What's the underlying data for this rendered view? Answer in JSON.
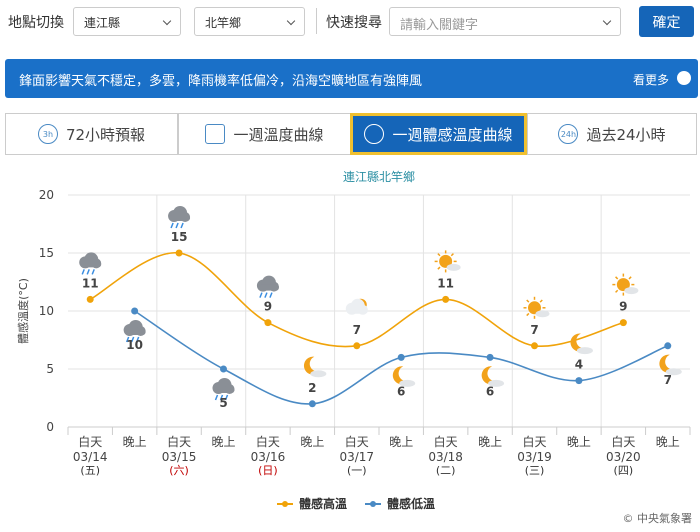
{
  "toolbar": {
    "location_label": "地點切換",
    "county": "連江縣",
    "township": "北竿鄉",
    "search_label": "快速搜尋",
    "search_placeholder": "請輸入關鍵字",
    "confirm": "確定"
  },
  "banner": {
    "text": "鋒面影響天氣不穩定，多雲，降雨機率低偏冷，沿海空曠地區有強陣風",
    "more": "看更多"
  },
  "tabs": [
    {
      "label": "72小時預報",
      "icon": "3h"
    },
    {
      "label": "一週溫度曲線"
    },
    {
      "label": "一週體感溫度曲線",
      "active": true
    },
    {
      "label": "過去24小時",
      "icon": "24h"
    }
  ],
  "chart_data": {
    "type": "line",
    "title": "連江縣北竿鄉",
    "y_label": "體感溫度(°C)",
    "categories": [
      "03/14",
      "03/15",
      "03/16",
      "03/17",
      "03/18",
      "03/19",
      "03/20"
    ],
    "weekdays": [
      "(五)",
      "(六)",
      "(日)",
      "(一)",
      "(二)",
      "(三)",
      "(四)"
    ],
    "weekday_colors": [
      "#333333",
      "#c00000",
      "#c00000",
      "#333333",
      "#333333",
      "#333333",
      "#333333"
    ],
    "periods": [
      "白天",
      "晚上"
    ],
    "series": [
      {
        "name": "體感高溫",
        "color": "#f0a30a",
        "values": [
          11,
          15,
          9,
          7,
          11,
          7,
          9
        ],
        "icons": [
          "rain",
          "rain",
          "rain",
          "cloudy-sun",
          "sun",
          "sun",
          "sun"
        ]
      },
      {
        "name": "體感低溫",
        "color": "#4a8ac4",
        "values": [
          10,
          5,
          2,
          6,
          6,
          4,
          7
        ],
        "icons": [
          "rain",
          "rain",
          "moon",
          "moon",
          "moon",
          "moon",
          "moon"
        ]
      }
    ],
    "ylim": [
      0,
      20
    ],
    "yticks": [
      0,
      5,
      10,
      15,
      20
    ],
    "grid": true,
    "legend": "bottom",
    "credit": "© 中央氣象署"
  }
}
